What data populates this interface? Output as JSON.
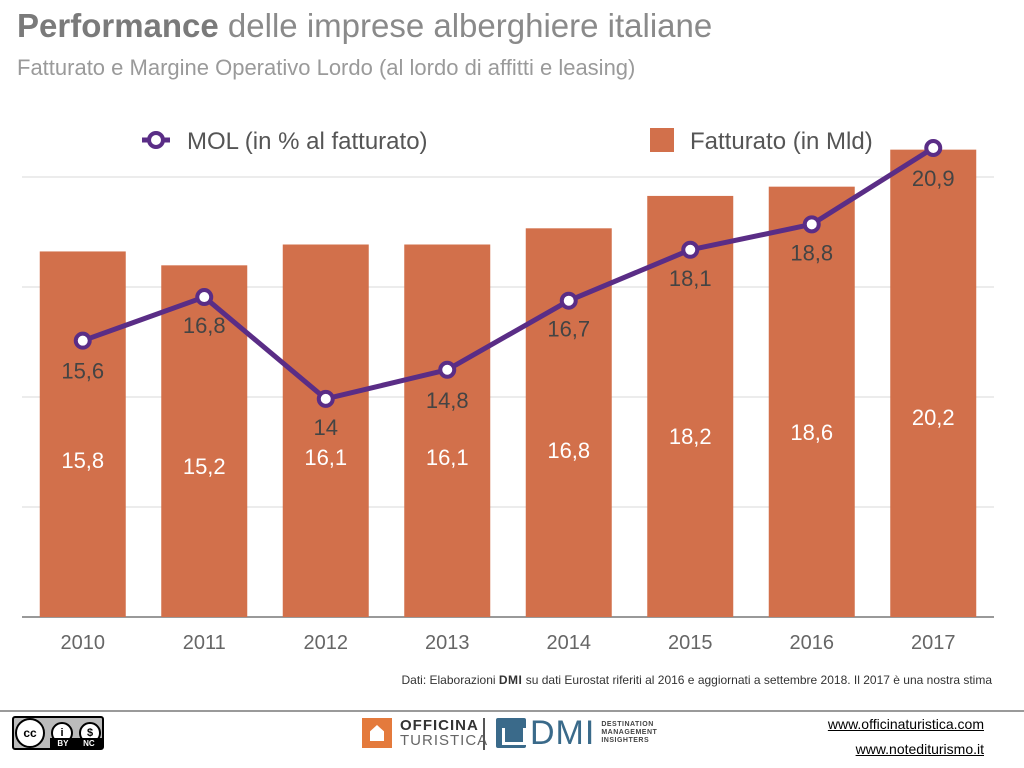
{
  "title": {
    "bold": "Performance",
    "rest": " delle imprese alberghiere italiane"
  },
  "subtitle": "Fatturato e Margine Operativo Lordo (al lordo di affitti e leasing)",
  "colors": {
    "bar": "#d2704b",
    "line": "#5a2d86",
    "grid": "#d8d8d8",
    "text": "#666666"
  },
  "chart_data": {
    "type": "bar",
    "categories": [
      "2010",
      "2011",
      "2012",
      "2013",
      "2014",
      "2015",
      "2016",
      "2017"
    ],
    "series": [
      {
        "name": "Fatturato (in Mld)",
        "kind": "bar",
        "axis": "left",
        "values": [
          15.8,
          15.2,
          16.1,
          16.1,
          16.8,
          18.2,
          18.6,
          20.2
        ],
        "labels": [
          "15,8",
          "15,2",
          "16,1",
          "16,1",
          "16,8",
          "18,2",
          "18,6",
          "20,2"
        ]
      },
      {
        "name": "MOL (in % al fatturato)",
        "kind": "line",
        "axis": "right",
        "values": [
          15.6,
          16.8,
          14,
          14.8,
          16.7,
          18.1,
          18.8,
          20.9
        ],
        "labels": [
          "15,6",
          "16,8",
          "14",
          "14,8",
          "16,7",
          "18,1",
          "18,8",
          "20,9"
        ]
      }
    ],
    "left_axis_range": [
      0,
      22
    ],
    "right_axis_range": [
      8,
      22
    ],
    "grid": true,
    "legend_position": "top"
  },
  "source_note": {
    "prefix": "Dati: Elaborazioni ",
    "brand": "DMI",
    "suffix": " su dati Eurostat riferiti al 2016 e aggiornati a settembre 2018. Il 2017 è una nostra stima"
  },
  "footer": {
    "cc_label": "cc",
    "cc_tags": [
      "BY",
      "NC"
    ],
    "officina_line1": "OFFICINA",
    "officina_line2": "TURISTICA",
    "dmi_word": "DMI",
    "dmi_tagline": [
      "DESTINATION",
      "MANAGEMENT",
      "INSIGHTERS"
    ],
    "website1": "www.officinaturistica.com",
    "website2": "www.notediturismo.it"
  }
}
